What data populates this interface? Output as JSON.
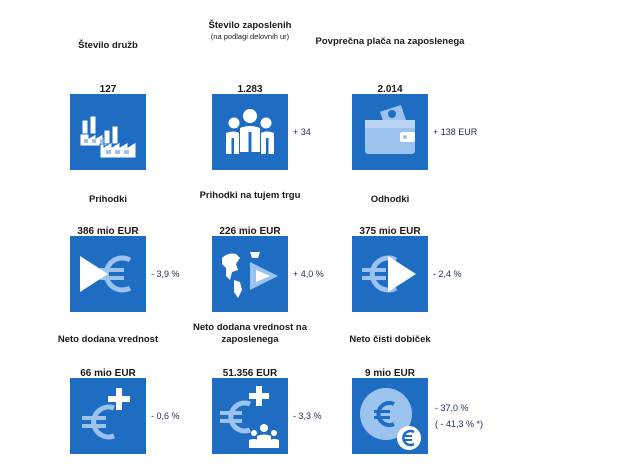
{
  "colors": {
    "tile": "#1f6dc2",
    "icon": "#ffffff",
    "icon_muted": "#9cc3ee"
  },
  "row1": [
    {
      "label": "Število družb",
      "value": "127",
      "icon": "factory-icon",
      "delta": ""
    },
    {
      "label": "Število zaposlenih",
      "label_small": "(na podlagi delovnih ur)",
      "value": "1.283",
      "icon": "people-group-icon",
      "delta": "+ 34"
    },
    {
      "label": "Povprečna plača na zaposlenega",
      "value": "2.014",
      "icon": "wallet-icon",
      "delta": "+ 138 EUR"
    }
  ],
  "row2": [
    {
      "label": "Prihodki",
      "value": "386 mio EUR",
      "icon": "play-euro-icon",
      "delta": "- 3,9 %"
    },
    {
      "label": "Prihodki na tujem trgu",
      "value": "226 mio EUR",
      "icon": "globe-play-icon",
      "delta": "+ 4,0 %"
    },
    {
      "label": "Odhodki",
      "value": "375 mio EUR",
      "icon": "euro-play-icon",
      "delta": "- 2,4 %"
    }
  ],
  "row3": [
    {
      "label": "Neto dodana vrednost",
      "value": "66 mio EUR",
      "icon": "euro-plus-icon",
      "delta": "- 0,6 %"
    },
    {
      "label": "Neto dodana vrednost na zaposlenega",
      "value": "51.356 EUR",
      "icon": "euro-plus-people-icon",
      "delta": "- 3,3 %"
    },
    {
      "label": "Neto čisti dobiček",
      "value": "9 mio EUR",
      "icon": "coin-euro-icon",
      "delta": "- 37,0 %",
      "delta2": "( - 41,3 % *)"
    }
  ]
}
